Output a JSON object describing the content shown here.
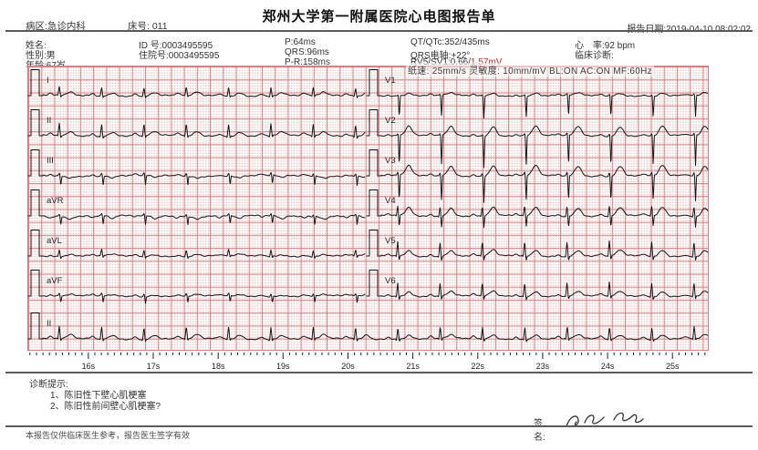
{
  "header": {
    "ward": "病区:急诊内科",
    "bed": "床号: 011",
    "title": "郑州大学第一附属医院心电图报告单",
    "report_date": "报告日期:2019-04-10  08:02:02"
  },
  "patient": {
    "name": "姓名:",
    "gender": "性别:男",
    "age": "年龄:67岁",
    "id_number": "ID 号:0003495595",
    "admission_number": "住院号:0003495595",
    "p_duration": "P:64ms",
    "qrs_duration": "QRS:96ms",
    "pr_interval": "P-R:158ms",
    "qt_qtc": "QT/QTc:352/435ms",
    "qrs_axis": "QRS电轴:+22°",
    "rv5_sv1_prefix": "RV5/SV1:0.66/",
    "rv5_sv1_red": "1.57mV",
    "heart_rate": "心　率:92 bpm",
    "clinical_diagnosis": "临床诊断:"
  },
  "ecg_settings": "纸速: 25mm/s 灵敏度: 10mm/mV BL:ON AC:ON MF:60Hz",
  "diagnosis": {
    "heading": "诊断提示:",
    "items": [
      "1、陈旧性下壁心肌梗塞",
      "2、陈旧性前间壁心肌梗塞?"
    ]
  },
  "signature": {
    "label": "签名:"
  },
  "footer": "本报告仅供临床医生参考，报告医生签字有效",
  "colors": {
    "grid_major": "#cf7d7d",
    "grid_minor": "#e9b2b2",
    "trace": "#151515",
    "red_value": "#c62626",
    "rule": "#5a5a5a"
  },
  "chart_data": {
    "type": "line",
    "subtype": "12-lead ECG with lead II rhythm strip",
    "title": "",
    "heart_rate_bpm": 92,
    "paper_speed_mm_per_s": 25,
    "gain_mm_per_mV": 10,
    "calibration_pulse_mV": 1,
    "grid": "1mm minor dotted / 5mm major pink squares",
    "time_axis": {
      "unit": "s",
      "start_s": 15.06,
      "end_s": 25.58,
      "tick_labels": [
        "16s",
        "17s",
        "18s",
        "19s",
        "20s",
        "21s",
        "22s",
        "23s",
        "24s",
        "25s"
      ]
    },
    "rows_layout": [
      "I|V1",
      "II|V2",
      "III|V3",
      "aVR|V4",
      "aVL|V5",
      "aVF|V6",
      "II-rhythm"
    ],
    "leads": [
      {
        "label": "I",
        "column": "left",
        "row": 0,
        "p": 0.8,
        "q": 0.2,
        "r": 3.2,
        "s": 0.7,
        "t": 1.2
      },
      {
        "label": "II",
        "column": "left",
        "row": 1,
        "p": 0.9,
        "q": 0.4,
        "r": 4.6,
        "s": 0.8,
        "t": 1.5
      },
      {
        "label": "III",
        "column": "left",
        "row": 2,
        "p": 0.5,
        "q": 0,
        "r": 1.0,
        "s": 3.6,
        "t": -0.7
      },
      {
        "label": "aVR",
        "column": "left",
        "row": 3,
        "p": -0.6,
        "q": 0,
        "r": 0.7,
        "s": 3.4,
        "t": -1.1
      },
      {
        "label": "aVL",
        "column": "left",
        "row": 4,
        "p": 0.4,
        "q": 0.2,
        "r": 2.4,
        "s": 0.8,
        "t": 0.6
      },
      {
        "label": "aVF",
        "column": "left",
        "row": 5,
        "p": 0.5,
        "q": 0,
        "r": 0.9,
        "s": 2.6,
        "t": 0.5
      },
      {
        "label": "V1",
        "column": "right",
        "row": 0,
        "p": 0.4,
        "q": 0,
        "r": 0.4,
        "s": 8.5,
        "t": 1.0
      },
      {
        "label": "V2",
        "column": "right",
        "row": 1,
        "p": 0.5,
        "q": 0,
        "r": 0.7,
        "s": 12.0,
        "t": 3.6
      },
      {
        "label": "V3",
        "column": "right",
        "row": 2,
        "p": 0.5,
        "q": 0,
        "r": 1.2,
        "s": 10.0,
        "t": 3.8
      },
      {
        "label": "V4",
        "column": "right",
        "row": 3,
        "p": 0.6,
        "q": 0.3,
        "r": 3.6,
        "s": 4.4,
        "t": 3.2
      },
      {
        "label": "V5",
        "column": "right",
        "row": 4,
        "p": 0.6,
        "q": 0.3,
        "r": 5.6,
        "s": 1.6,
        "t": 2.2
      },
      {
        "label": "V6",
        "column": "right",
        "row": 5,
        "p": 0.6,
        "q": 0.3,
        "r": 5.2,
        "s": 1.2,
        "t": 1.8
      },
      {
        "label": "II",
        "column": "full",
        "row": 6,
        "p": 0.9,
        "q": 0.4,
        "r": 4.6,
        "s": 0.8,
        "t": 1.5
      }
    ]
  }
}
